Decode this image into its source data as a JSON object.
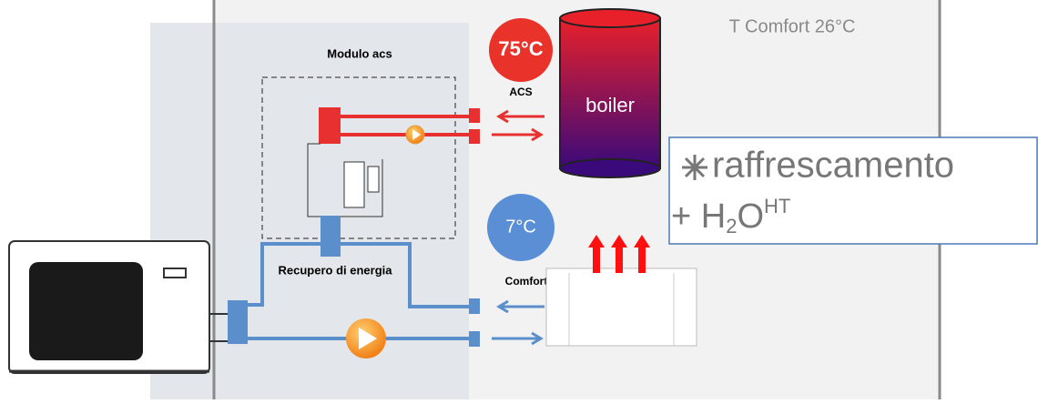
{
  "header": {
    "comfort": "T Comfort  26°C"
  },
  "module": {
    "title": "Modulo acs",
    "recovery": "Recupero di energia"
  },
  "acs": {
    "temperature": "75°C",
    "label": "ACS",
    "boiler": "boiler"
  },
  "cooling": {
    "temperature": "7°C",
    "label": "Comfort"
  },
  "mode": {
    "title": "raffrescamento",
    "prefix": "+ H",
    "subscript": "2",
    "middle": "O",
    "superscript": "HT"
  }
}
